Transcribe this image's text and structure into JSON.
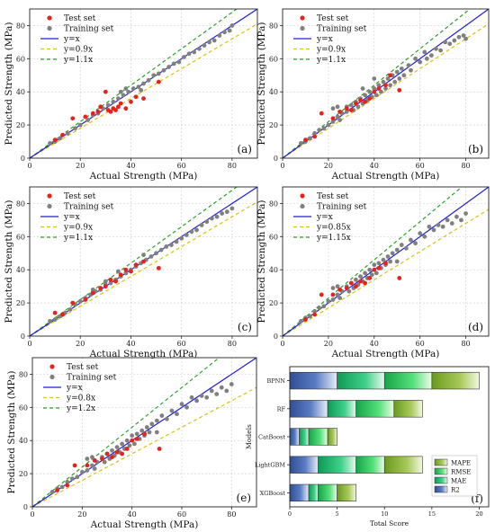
{
  "colors": {
    "test": "#e8211c",
    "train": "#808080",
    "identity": "#1f1fd6",
    "lower": "#d4c21a",
    "upper": "#2aa12a",
    "r2": "#3a5ea8",
    "mae": "#1fbf66",
    "rmse": "#2fd05a",
    "mape": "#8fb93a"
  },
  "legend_common": {
    "test": "Test set",
    "train": "Training set",
    "identity": "y=x"
  },
  "chart_data": [
    {
      "type": "scatter",
      "panel_label": "(a)",
      "xlabel": "Actual Strength (MPa)",
      "ylabel": "Predicted Strength (MPa)",
      "xlim": [
        0,
        90
      ],
      "ylim": [
        0,
        90
      ],
      "xticks": [
        0,
        20,
        40,
        60,
        80
      ],
      "yticks": [
        0,
        20,
        40,
        60,
        80
      ],
      "grid": true,
      "legend_position": "top-left",
      "lower_label": "y=0.9x",
      "lower_factor": 0.9,
      "upper_label": "y=1.1x",
      "upper_factor": 1.1,
      "test": [
        [
          10,
          11
        ],
        [
          13,
          14
        ],
        [
          17,
          24
        ],
        [
          22,
          25
        ],
        [
          25,
          27
        ],
        [
          27,
          28
        ],
        [
          28,
          31
        ],
        [
          30,
          40
        ],
        [
          31,
          29
        ],
        [
          32,
          28
        ],
        [
          33,
          30
        ],
        [
          34,
          29
        ],
        [
          35,
          31
        ],
        [
          36,
          33
        ],
        [
          38,
          30
        ],
        [
          40,
          34
        ],
        [
          42,
          37
        ],
        [
          45,
          36
        ],
        [
          51,
          46
        ]
      ],
      "train": [
        [
          8,
          9
        ],
        [
          10,
          10
        ],
        [
          12,
          12
        ],
        [
          15,
          15
        ],
        [
          18,
          18
        ],
        [
          20,
          20
        ],
        [
          23,
          23
        ],
        [
          25,
          26
        ],
        [
          27,
          27
        ],
        [
          29,
          30
        ],
        [
          31,
          32
        ],
        [
          33,
          34
        ],
        [
          35,
          36
        ],
        [
          37,
          38
        ],
        [
          39,
          40
        ],
        [
          41,
          42
        ],
        [
          43,
          43
        ],
        [
          45,
          45
        ],
        [
          47,
          47
        ],
        [
          49,
          50
        ],
        [
          51,
          51
        ],
        [
          53,
          53
        ],
        [
          55,
          55
        ],
        [
          57,
          57
        ],
        [
          59,
          58
        ],
        [
          61,
          61
        ],
        [
          63,
          63
        ],
        [
          65,
          64
        ],
        [
          67,
          66
        ],
        [
          69,
          68
        ],
        [
          71,
          70
        ],
        [
          73,
          71
        ],
        [
          75,
          74
        ],
        [
          77,
          76
        ],
        [
          79,
          77
        ],
        [
          80,
          80
        ],
        [
          38,
          42
        ],
        [
          36,
          40
        ],
        [
          44,
          41
        ]
      ]
    },
    {
      "type": "scatter",
      "panel_label": "(b)",
      "xlabel": "Actual Strength (MPa)",
      "ylabel": "Predicted Strength (MPa)",
      "xlim": [
        0,
        90
      ],
      "ylim": [
        0,
        90
      ],
      "xticks": [
        0,
        20,
        40,
        60,
        80
      ],
      "yticks": [
        0,
        20,
        40,
        60,
        80
      ],
      "grid": true,
      "legend_position": "top-left",
      "lower_label": "y=0.9x",
      "lower_factor": 0.9,
      "upper_label": "y=1.1x",
      "upper_factor": 1.1,
      "test": [
        [
          10,
          11
        ],
        [
          14,
          13
        ],
        [
          17,
          27
        ],
        [
          22,
          24
        ],
        [
          25,
          28
        ],
        [
          28,
          30
        ],
        [
          30,
          29
        ],
        [
          32,
          33
        ],
        [
          34,
          35
        ],
        [
          36,
          34
        ],
        [
          38,
          36
        ],
        [
          40,
          40
        ],
        [
          42,
          42
        ],
        [
          45,
          44
        ],
        [
          47,
          50
        ],
        [
          51,
          41
        ]
      ],
      "train": [
        [
          8,
          9
        ],
        [
          10,
          10
        ],
        [
          12,
          12
        ],
        [
          14,
          15
        ],
        [
          16,
          17
        ],
        [
          18,
          18
        ],
        [
          20,
          20
        ],
        [
          22,
          22
        ],
        [
          24,
          25
        ],
        [
          25,
          23
        ],
        [
          26,
          27
        ],
        [
          28,
          28
        ],
        [
          28,
          31
        ],
        [
          30,
          32
        ],
        [
          31,
          29
        ],
        [
          32,
          34
        ],
        [
          33,
          31
        ],
        [
          34,
          36
        ],
        [
          35,
          33
        ],
        [
          36,
          38
        ],
        [
          37,
          35
        ],
        [
          38,
          40
        ],
        [
          39,
          37
        ],
        [
          40,
          42
        ],
        [
          41,
          38
        ],
        [
          42,
          44
        ],
        [
          43,
          40
        ],
        [
          44,
          46
        ],
        [
          45,
          42
        ],
        [
          46,
          48
        ],
        [
          47,
          44
        ],
        [
          48,
          50
        ],
        [
          49,
          46
        ],
        [
          50,
          52
        ],
        [
          51,
          48
        ],
        [
          52,
          54
        ],
        [
          53,
          50
        ],
        [
          55,
          56
        ],
        [
          56,
          53
        ],
        [
          58,
          60
        ],
        [
          60,
          58
        ],
        [
          62,
          64
        ],
        [
          63,
          60
        ],
        [
          65,
          62
        ],
        [
          67,
          66
        ],
        [
          69,
          65
        ],
        [
          71,
          70
        ],
        [
          73,
          69
        ],
        [
          75,
          71
        ],
        [
          77,
          73
        ],
        [
          79,
          74
        ],
        [
          80,
          72
        ],
        [
          22,
          30
        ],
        [
          24,
          31
        ],
        [
          35,
          42
        ],
        [
          40,
          48
        ]
      ]
    },
    {
      "type": "scatter",
      "panel_label": "(c)",
      "xlabel": "Actual Strength (MPa)",
      "ylabel": "Predicted Strength (MPa)",
      "xlim": [
        0,
        90
      ],
      "ylim": [
        0,
        90
      ],
      "xticks": [
        0,
        20,
        40,
        60,
        80
      ],
      "yticks": [
        0,
        20,
        40,
        60,
        80
      ],
      "grid": true,
      "legend_position": "top-left",
      "lower_label": "y=0.9x",
      "lower_factor": 0.9,
      "upper_label": "y=1.1x",
      "upper_factor": 1.1,
      "test": [
        [
          10,
          14
        ],
        [
          13,
          13
        ],
        [
          17,
          20
        ],
        [
          22,
          22
        ],
        [
          25,
          26
        ],
        [
          28,
          29
        ],
        [
          30,
          30
        ],
        [
          32,
          34
        ],
        [
          34,
          33
        ],
        [
          36,
          37
        ],
        [
          38,
          40
        ],
        [
          40,
          39
        ],
        [
          42,
          43
        ],
        [
          45,
          45
        ],
        [
          51,
          41
        ]
      ],
      "train": [
        [
          8,
          9
        ],
        [
          10,
          10
        ],
        [
          12,
          12
        ],
        [
          14,
          14
        ],
        [
          16,
          16
        ],
        [
          18,
          19
        ],
        [
          20,
          21
        ],
        [
          22,
          23
        ],
        [
          24,
          25
        ],
        [
          26,
          27
        ],
        [
          28,
          28
        ],
        [
          30,
          31
        ],
        [
          32,
          32
        ],
        [
          34,
          34
        ],
        [
          36,
          36
        ],
        [
          38,
          38
        ],
        [
          40,
          40
        ],
        [
          42,
          42
        ],
        [
          44,
          44
        ],
        [
          46,
          46
        ],
        [
          48,
          48
        ],
        [
          50,
          50
        ],
        [
          52,
          52
        ],
        [
          54,
          54
        ],
        [
          56,
          55
        ],
        [
          58,
          57
        ],
        [
          60,
          59
        ],
        [
          62,
          61
        ],
        [
          64,
          63
        ],
        [
          66,
          64
        ],
        [
          68,
          67
        ],
        [
          70,
          69
        ],
        [
          72,
          71
        ],
        [
          74,
          72
        ],
        [
          76,
          74
        ],
        [
          78,
          75
        ],
        [
          80,
          77
        ],
        [
          25,
          28
        ],
        [
          30,
          33
        ],
        [
          35,
          39
        ],
        [
          45,
          49
        ]
      ]
    },
    {
      "type": "scatter",
      "panel_label": "(d)",
      "xlabel": "Actual Strength (MPa)",
      "ylabel": "Predicted Strength (MPa)",
      "xlim": [
        0,
        90
      ],
      "ylim": [
        0,
        90
      ],
      "xticks": [
        0,
        20,
        40,
        60,
        80
      ],
      "yticks": [
        0,
        20,
        40,
        60,
        80
      ],
      "grid": true,
      "legend_position": "top-left",
      "lower_label": "y=0.85x",
      "lower_factor": 0.85,
      "upper_label": "y=1.15x",
      "upper_factor": 1.15,
      "test": [
        [
          10,
          10
        ],
        [
          14,
          13
        ],
        [
          17,
          25
        ],
        [
          22,
          25
        ],
        [
          25,
          28
        ],
        [
          28,
          29
        ],
        [
          30,
          32
        ],
        [
          32,
          30
        ],
        [
          34,
          33
        ],
        [
          36,
          32
        ],
        [
          38,
          35
        ],
        [
          40,
          40
        ],
        [
          42,
          41
        ],
        [
          45,
          44
        ],
        [
          51,
          35
        ]
      ],
      "train": [
        [
          8,
          9
        ],
        [
          10,
          11
        ],
        [
          12,
          12
        ],
        [
          14,
          15
        ],
        [
          16,
          17
        ],
        [
          18,
          18
        ],
        [
          20,
          21
        ],
        [
          22,
          22
        ],
        [
          24,
          25
        ],
        [
          25,
          23
        ],
        [
          26,
          27
        ],
        [
          28,
          30
        ],
        [
          29,
          27
        ],
        [
          30,
          32
        ],
        [
          31,
          29
        ],
        [
          32,
          34
        ],
        [
          33,
          31
        ],
        [
          34,
          36
        ],
        [
          35,
          33
        ],
        [
          36,
          38
        ],
        [
          37,
          35
        ],
        [
          38,
          40
        ],
        [
          39,
          37
        ],
        [
          40,
          43
        ],
        [
          41,
          38
        ],
        [
          42,
          44
        ],
        [
          43,
          41
        ],
        [
          44,
          46
        ],
        [
          45,
          43
        ],
        [
          46,
          48
        ],
        [
          47,
          45
        ],
        [
          48,
          50
        ],
        [
          50,
          52
        ],
        [
          52,
          55
        ],
        [
          54,
          53
        ],
        [
          56,
          58
        ],
        [
          58,
          56
        ],
        [
          60,
          62
        ],
        [
          62,
          60
        ],
        [
          64,
          66
        ],
        [
          66,
          64
        ],
        [
          68,
          67
        ],
        [
          70,
          66
        ],
        [
          72,
          70
        ],
        [
          74,
          68
        ],
        [
          76,
          72
        ],
        [
          78,
          70
        ],
        [
          80,
          74
        ],
        [
          22,
          29
        ],
        [
          24,
          30
        ],
        [
          50,
          45
        ]
      ]
    },
    {
      "type": "scatter",
      "panel_label": "(e)",
      "xlabel": "Actual Strength (MPa)",
      "ylabel": "Predicted Strength (MPa)",
      "xlim": [
        0,
        90
      ],
      "ylim": [
        0,
        90
      ],
      "xticks": [
        0,
        20,
        40,
        60,
        80
      ],
      "yticks": [
        0,
        20,
        40,
        60,
        80
      ],
      "grid": true,
      "legend_position": "top-left",
      "lower_label": "y=0.8x",
      "lower_factor": 0.8,
      "upper_label": "y=1.2x",
      "upper_factor": 1.2,
      "test": [
        [
          10,
          10
        ],
        [
          14,
          13
        ],
        [
          17,
          25
        ],
        [
          22,
          25
        ],
        [
          25,
          28
        ],
        [
          28,
          29
        ],
        [
          30,
          32
        ],
        [
          32,
          30
        ],
        [
          34,
          33
        ],
        [
          36,
          32
        ],
        [
          38,
          35
        ],
        [
          40,
          40
        ],
        [
          42,
          41
        ],
        [
          45,
          44
        ],
        [
          51,
          35
        ]
      ],
      "train": [
        [
          8,
          9
        ],
        [
          10,
          11
        ],
        [
          12,
          12
        ],
        [
          14,
          15
        ],
        [
          16,
          17
        ],
        [
          18,
          18
        ],
        [
          20,
          21
        ],
        [
          22,
          22
        ],
        [
          24,
          25
        ],
        [
          25,
          23
        ],
        [
          26,
          27
        ],
        [
          28,
          30
        ],
        [
          29,
          27
        ],
        [
          30,
          32
        ],
        [
          31,
          29
        ],
        [
          32,
          34
        ],
        [
          33,
          31
        ],
        [
          34,
          36
        ],
        [
          35,
          33
        ],
        [
          36,
          38
        ],
        [
          37,
          35
        ],
        [
          38,
          40
        ],
        [
          39,
          37
        ],
        [
          40,
          43
        ],
        [
          41,
          38
        ],
        [
          42,
          44
        ],
        [
          43,
          41
        ],
        [
          44,
          46
        ],
        [
          45,
          43
        ],
        [
          46,
          48
        ],
        [
          47,
          45
        ],
        [
          48,
          50
        ],
        [
          50,
          52
        ],
        [
          52,
          55
        ],
        [
          54,
          53
        ],
        [
          56,
          58
        ],
        [
          58,
          56
        ],
        [
          60,
          62
        ],
        [
          62,
          60
        ],
        [
          64,
          66
        ],
        [
          66,
          64
        ],
        [
          68,
          67
        ],
        [
          70,
          66
        ],
        [
          72,
          70
        ],
        [
          74,
          68
        ],
        [
          76,
          72
        ],
        [
          78,
          70
        ],
        [
          80,
          74
        ],
        [
          22,
          29
        ],
        [
          24,
          30
        ],
        [
          50,
          45
        ]
      ]
    },
    {
      "type": "bar",
      "orientation": "horizontal",
      "stacked": true,
      "panel_label": "(f)",
      "xlabel": "Total Score",
      "ylabel": "Models",
      "xlim": [
        0,
        21
      ],
      "xticks": [
        0,
        5,
        10,
        15,
        20
      ],
      "categories": [
        "BPNN",
        "RF",
        "CatBoost",
        "LightGBM",
        "XGBoost"
      ],
      "series": [
        {
          "name": "R2",
          "values": [
            5,
            4,
            1,
            3,
            2
          ]
        },
        {
          "name": "MAE",
          "values": [
            5,
            3,
            1,
            4,
            1
          ]
        },
        {
          "name": "RMSE",
          "values": [
            5,
            4,
            2,
            3,
            2
          ]
        },
        {
          "name": "MAPE",
          "values": [
            5,
            3,
            1,
            4,
            2
          ]
        }
      ],
      "legend_position": "bottom-right"
    }
  ]
}
